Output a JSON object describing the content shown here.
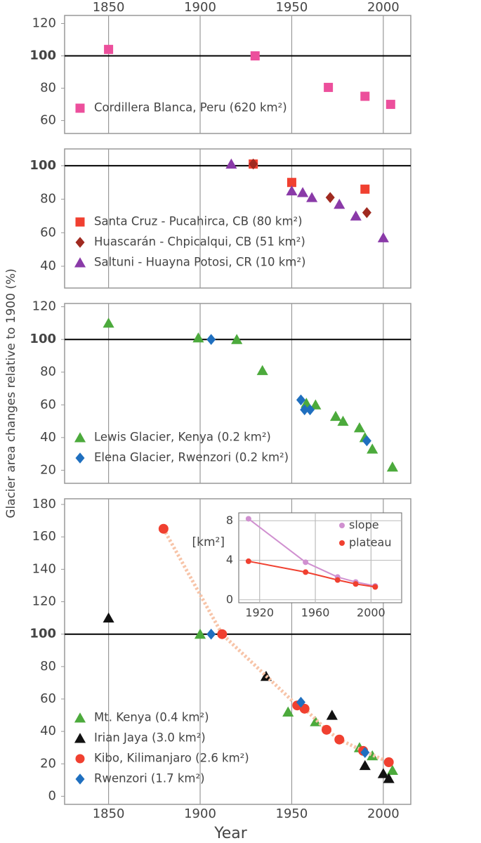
{
  "ylabel": "Glacier area changes relative to 1900 (%)",
  "chart_data": [
    {
      "type": "scatter",
      "xlim": [
        1826,
        2015
      ],
      "xticks": [
        1850,
        1900,
        1950,
        2000
      ],
      "xaxis": "top",
      "ylim": [
        52,
        125
      ],
      "yticks": [
        60,
        80,
        100,
        120
      ],
      "hline": 100,
      "legend": "lower left",
      "series": [
        {
          "name": "Cordillera Blanca, Peru (620 km²)",
          "marker": "square",
          "color": "#ec4f9c",
          "x": [
            1850,
            1930,
            1970,
            1990,
            2004
          ],
          "values": [
            104,
            100,
            80.5,
            75,
            70
          ]
        }
      ]
    },
    {
      "type": "scatter",
      "xlim": [
        1826,
        2015
      ],
      "xticks": [
        1850,
        1900,
        1950,
        2000
      ],
      "ylim": [
        27,
        110
      ],
      "yticks": [
        40,
        60,
        80,
        100
      ],
      "hline": 100,
      "legend": "lower left",
      "series": [
        {
          "name": "Santa Cruz - Pucahirca, CB (80 km²)",
          "marker": "square",
          "color": "#f04030",
          "x": [
            1929,
            1950,
            1990
          ],
          "values": [
            101,
            90,
            86
          ]
        },
        {
          "name": "Huascarán - Chpicalqui, CB (51 km²)",
          "marker": "diamond",
          "color": "#a02a20",
          "x": [
            1929,
            1971,
            1991
          ],
          "values": [
            101,
            81,
            72
          ]
        },
        {
          "name": "Saltuni - Huayna Potosi, CR (10 km²)",
          "marker": "triangle",
          "color": "#8a3aa8",
          "x": [
            1917,
            1950,
            1956,
            1961,
            1976,
            1985,
            2000
          ],
          "values": [
            101,
            85,
            84,
            81,
            77,
            70,
            57
          ]
        }
      ]
    },
    {
      "type": "scatter",
      "xlim": [
        1826,
        2015
      ],
      "xticks": [
        1850,
        1900,
        1950,
        2000
      ],
      "ylim": [
        12,
        122
      ],
      "yticks": [
        20,
        40,
        60,
        80,
        100,
        120
      ],
      "hline": 100,
      "legend": "lower left",
      "series": [
        {
          "name": "Lewis Glacier, Kenya (0.2 km²)",
          "marker": "triangle",
          "color": "#4caa3c",
          "x": [
            1850,
            1899,
            1920,
            1934,
            1958,
            1963,
            1974,
            1978,
            1987,
            1990,
            1994,
            2005
          ],
          "values": [
            110,
            101,
            100,
            81,
            61,
            60,
            53,
            50,
            46,
            40,
            33,
            22
          ]
        },
        {
          "name": "Elena Glacier, Rwenzori (0.2 km²)",
          "marker": "diamond",
          "color": "#1f6fbf",
          "x": [
            1906,
            1955,
            1957,
            1960,
            1991
          ],
          "values": [
            100,
            63,
            57,
            57,
            38
          ]
        }
      ]
    },
    {
      "type": "scatter",
      "xlim": [
        1826,
        2015
      ],
      "xticks": [
        1850,
        1900,
        1950,
        2000
      ],
      "xaxis": "bottom",
      "xlabel": "Year",
      "ylim": [
        -5,
        183.5
      ],
      "yticks": [
        0,
        20,
        40,
        60,
        80,
        100,
        120,
        140,
        160,
        180
      ],
      "hline": 100,
      "legend": "lower left",
      "series": [
        {
          "name": "Mt. Kenya (0.4 km²)",
          "marker": "triangle",
          "color": "#4caa3c",
          "x": [
            1900,
            1948,
            1963,
            1987,
            1994,
            2005
          ],
          "values": [
            100,
            52,
            46,
            30,
            25,
            16
          ]
        },
        {
          "name": "Irian Jaya (3.0 km²)",
          "marker": "triangle",
          "color": "#111111",
          "x": [
            1850,
            1936,
            1972,
            1990,
            2000,
            2003
          ],
          "values": [
            110,
            74,
            50,
            19,
            14,
            11
          ]
        },
        {
          "name": "Kibo, Kilimanjaro (2.6 km²)",
          "marker": "circle",
          "color": "#f04030",
          "line": "dotted",
          "line_color": "#f7c4a8",
          "x": [
            1880,
            1912,
            1953,
            1957,
            1969,
            1976,
            1989,
            2003
          ],
          "values": [
            165,
            100,
            56,
            54,
            41,
            35,
            28,
            21
          ]
        },
        {
          "name": "Rwenzori (1.7 km²)",
          "marker": "diamond",
          "color": "#1f6fbf",
          "x": [
            1906,
            1955,
            1990
          ],
          "values": [
            100,
            58,
            27
          ]
        }
      ]
    },
    {
      "type": "line",
      "inset": true,
      "xlim": [
        1905,
        2022
      ],
      "xticks": [
        1920,
        1960,
        2000
      ],
      "ylim": [
        -0.3,
        8.8
      ],
      "yticks": [
        0,
        4,
        8
      ],
      "ylabel": "[km²]",
      "grid": true,
      "legend": "upper right",
      "series": [
        {
          "name": "slope",
          "color": "#d090d0",
          "x": [
            1912,
            1953,
            1976,
            1989,
            2003
          ],
          "values": [
            8.2,
            3.8,
            2.3,
            1.8,
            1.4
          ]
        },
        {
          "name": "plateau",
          "color": "#f04030",
          "x": [
            1912,
            1953,
            1976,
            1989,
            2003
          ],
          "values": [
            3.9,
            2.8,
            2.0,
            1.6,
            1.3
          ]
        }
      ]
    }
  ]
}
